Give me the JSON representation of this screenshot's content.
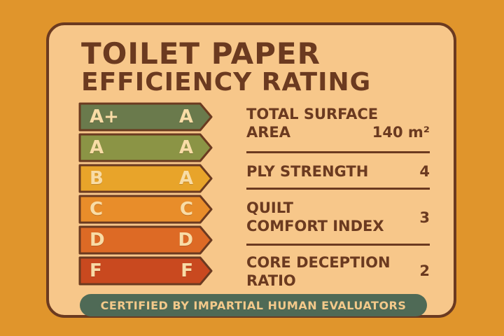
{
  "title_line1": "TOILET PAPER",
  "title_line2": "EFFICIENCY RATING",
  "ratings": [
    {
      "left": "A+",
      "right": "A",
      "color": "#6a7a4c"
    },
    {
      "left": "A",
      "right": "A",
      "color": "#8b9445"
    },
    {
      "left": "B",
      "right": "A",
      "color": "#e8a42a"
    },
    {
      "left": "C",
      "right": "C",
      "color": "#e88d2a"
    },
    {
      "left": "D",
      "right": "D",
      "color": "#dd6a25"
    },
    {
      "left": "F",
      "right": "F",
      "color": "#c9491f"
    }
  ],
  "attributes": [
    {
      "label_line1": "TOTAL SURFACE",
      "label_line2": "AREA",
      "value": "140 m²"
    },
    {
      "label_line1": "PLY STRENGTH",
      "label_line2": "",
      "value": "4"
    },
    {
      "label_line1": "QUILT",
      "label_line2": "COMFORT INDEX",
      "value": "3"
    },
    {
      "label_line1": "CORE DECEPTION",
      "label_line2": "RATIO",
      "value": "2"
    }
  ],
  "footer_text": "CERTIFIED BY IMPARTIAL HUMAN EVALUATORS",
  "colors": {
    "background": "#e0952c",
    "card": "#f7c78a",
    "ink": "#6b3a20",
    "footer_bg": "#4f6a56"
  }
}
